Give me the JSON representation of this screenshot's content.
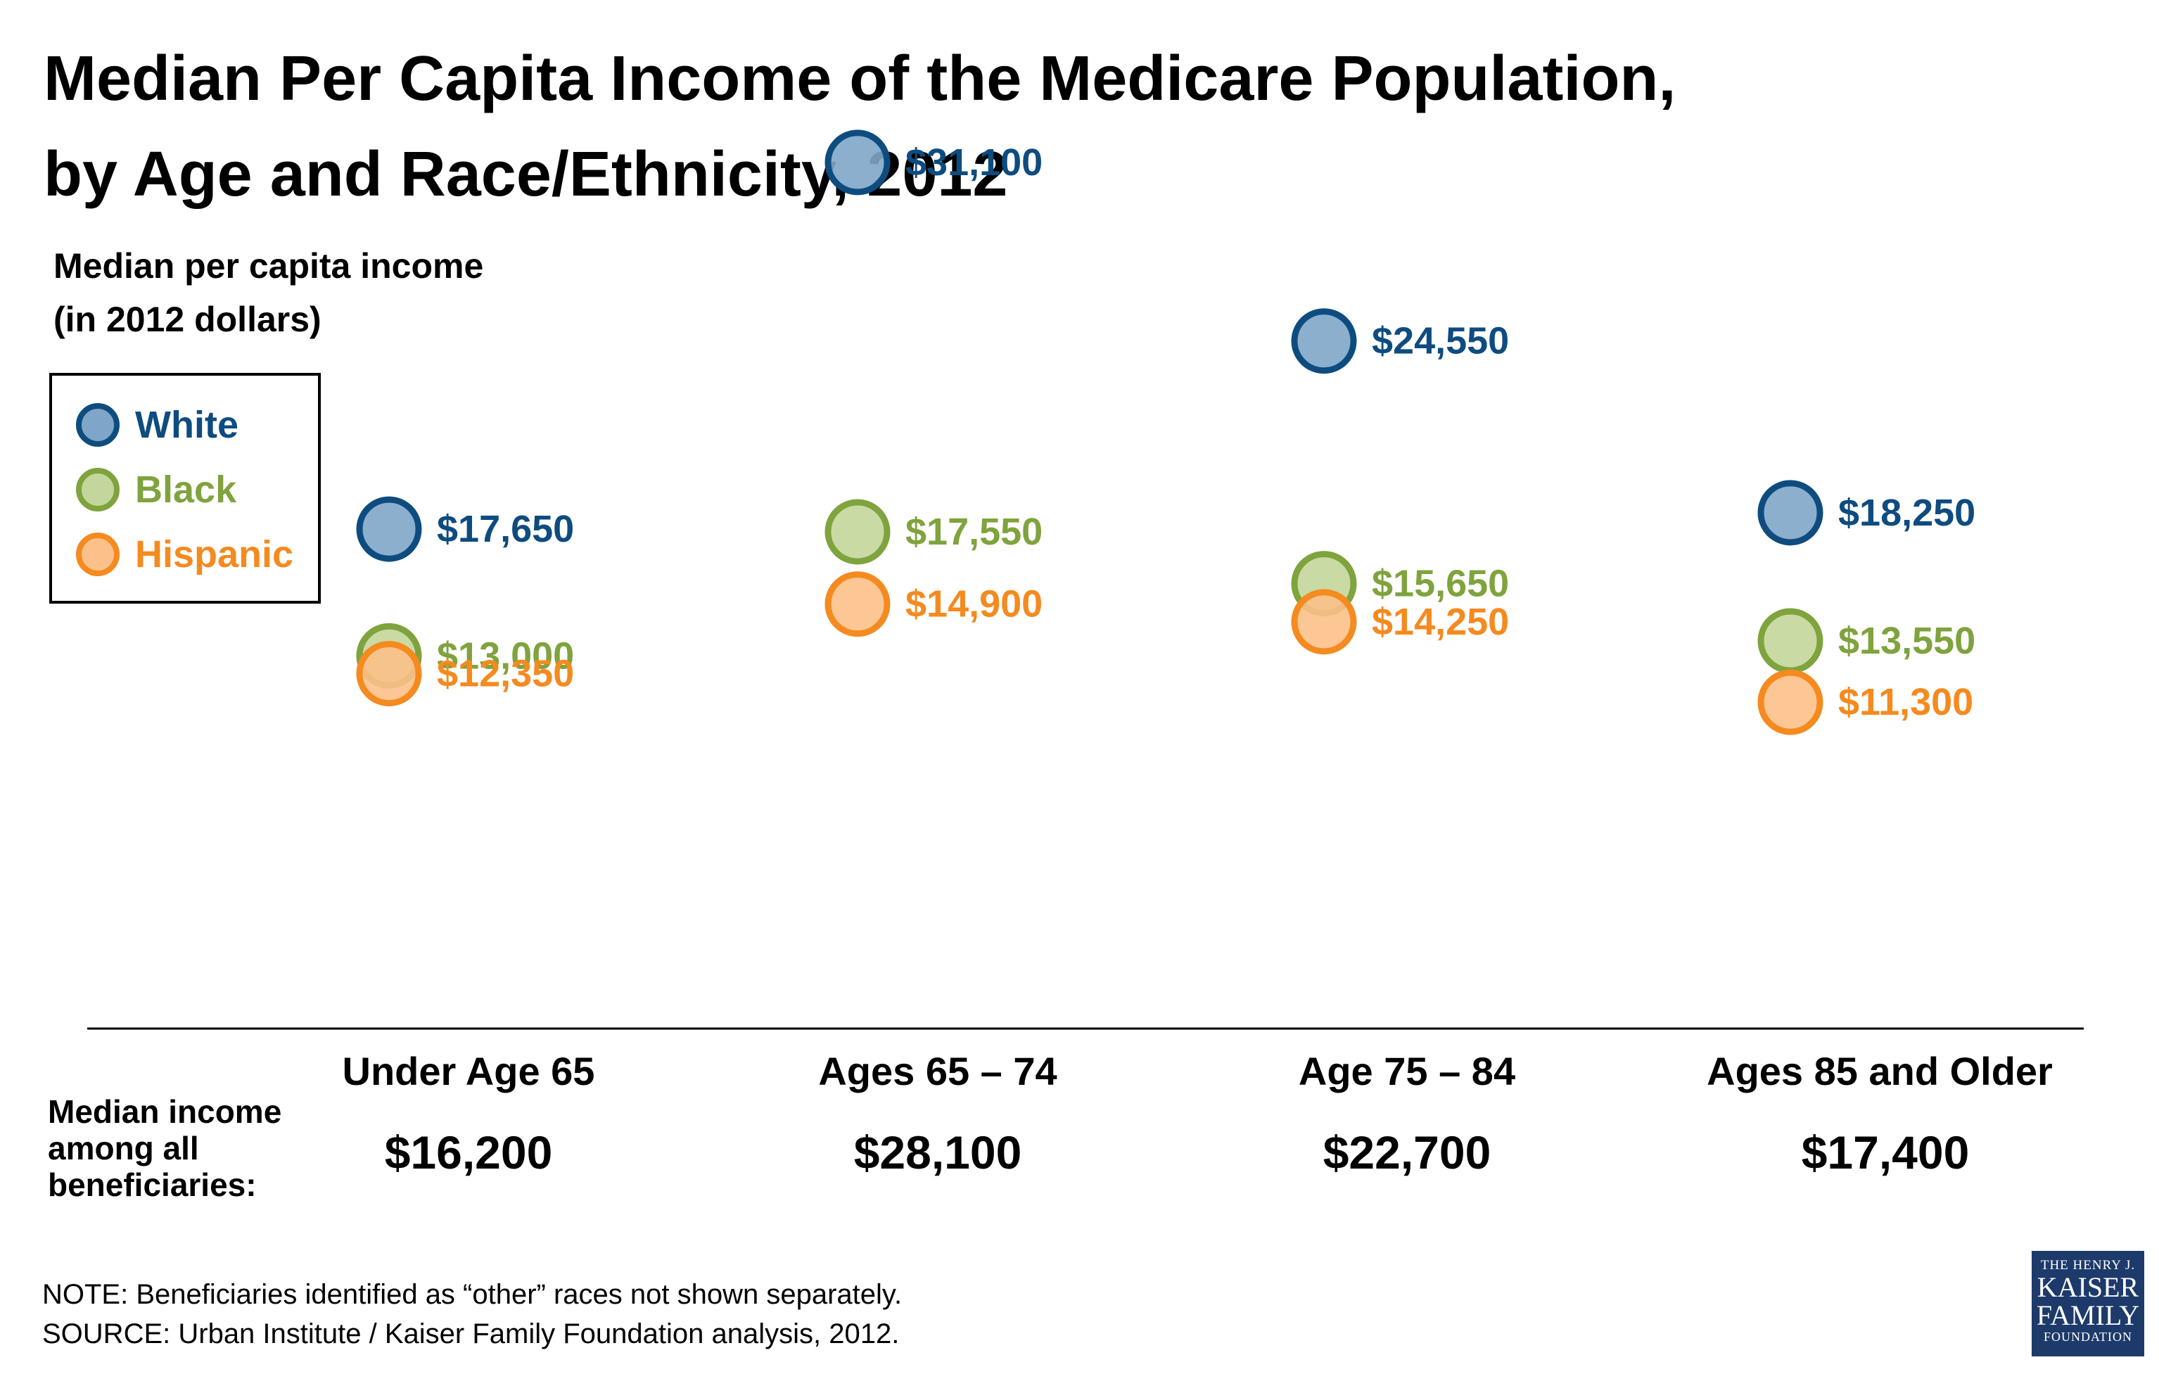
{
  "title_line1": "Median Per Capita Income of the Medicare Population,",
  "title_line2": "by Age and Race/Ethnicity, 2012",
  "ylabel_line1": "Median per capita income",
  "ylabel_line2": "(in 2012 dollars)",
  "median_caption_line1": "Median income",
  "median_caption_line2": "among all",
  "median_caption_line3": "beneficiaries:",
  "note": "NOTE: Beneficiaries identified as “other” races not shown separately.",
  "source": "SOURCE: Urban Institute / Kaiser Family Foundation analysis, 2012.",
  "logo": {
    "line1": "THE HENRY J.",
    "line2": "KAISER",
    "line3": "FAMILY",
    "line4": "FOUNDATION"
  },
  "colors": {
    "white_fill": "#7fa6c9",
    "white_stroke": "#0e4c80",
    "black_fill": "#c3d69b",
    "black_stroke": "#7fa33d",
    "hispanic_fill": "#fcc08a",
    "hispanic_stroke": "#f58a1f"
  },
  "chart_data": {
    "type": "scatter",
    "title": "Median Per Capita Income of the Medicare Population, by Age and Race/Ethnicity, 2012",
    "ylabel": "Median per capita income (in 2012 dollars)",
    "legend": "top-left",
    "categories": [
      "Under Age 65",
      "Ages 65 – 74",
      "Age 75 – 84",
      "Ages 85 and Older"
    ],
    "category_medians": [
      "$16,200",
      "$28,100",
      "$22,700",
      "$17,400"
    ],
    "series": [
      {
        "name": "White",
        "values": [
          17650,
          31100,
          24550,
          18250
        ],
        "labels": [
          "$17,650",
          "$31,100",
          "$24,550",
          "$18,250"
        ],
        "fill": "#7fa6c9",
        "stroke": "#0e4c80"
      },
      {
        "name": "Black",
        "values": [
          13000,
          17550,
          15650,
          13550
        ],
        "labels": [
          "$13,000",
          "$17,550",
          "$15,650",
          "$13,550"
        ],
        "fill": "#c3d69b",
        "stroke": "#7fa33d"
      },
      {
        "name": "Hispanic",
        "values": [
          12350,
          14900,
          14250,
          11300
        ],
        "labels": [
          "$12,350",
          "$14,900",
          "$14,250",
          "$11,300"
        ],
        "fill": "#fcc08a",
        "stroke": "#f58a1f"
      }
    ]
  }
}
